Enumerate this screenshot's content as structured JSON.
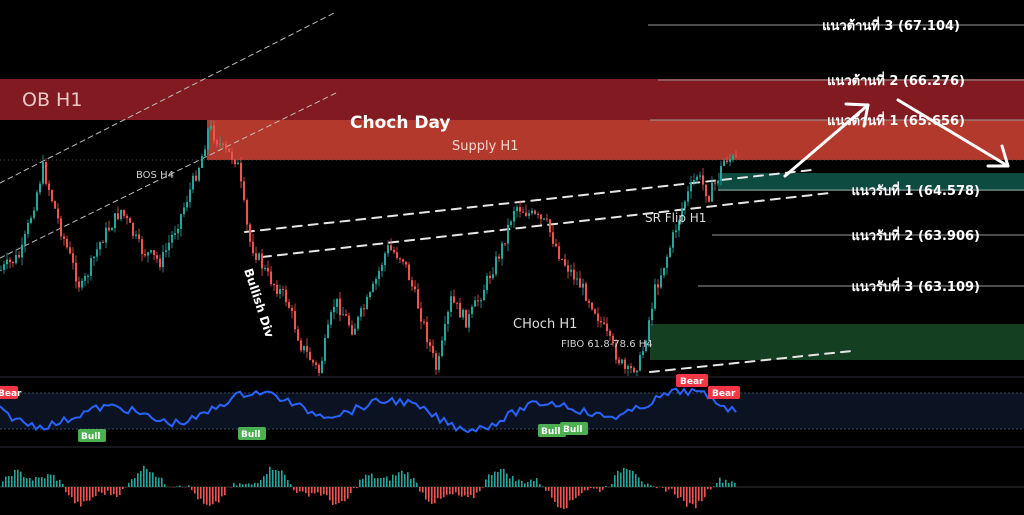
{
  "chart_data": {
    "type": "candlestick",
    "title": "",
    "zones": [
      {
        "label": "OB H1",
        "color": "#8a1c22"
      },
      {
        "label": "Supply H1",
        "color": "#b8392e"
      },
      {
        "label": "",
        "color": "#0e4d43"
      },
      {
        "label": "",
        "color": "#174a24"
      }
    ],
    "annotations": [
      "Choch Day",
      "BOS H4",
      "Bullish Div",
      "SR Flip H1",
      "CHoch H1",
      "FIBO 61.8-78.6 H4"
    ],
    "resistance_levels": [
      {
        "label": "แนวต้านที่ 3 (67.104)",
        "value": 67.104
      },
      {
        "label": "แนวต้านที่ 2 (66.276)",
        "value": 66.276
      },
      {
        "label": "แนวต้านที่ 1 (65.656)",
        "value": 65.656
      }
    ],
    "support_levels": [
      {
        "label": "แนวรับที่ 1 (64.578)",
        "value": 64.578
      },
      {
        "label": "แนวรับที่ 2 (63.906)",
        "value": 63.906
      },
      {
        "label": "แนวรับที่ 3 (63.109)",
        "value": 63.109
      }
    ],
    "oscillator_tags": [
      "Bear",
      "Bull",
      "Bull",
      "Bull",
      "Bull",
      "Bear",
      "Bear"
    ],
    "colors": {
      "bull": "#26a69a",
      "bear": "#ef5350",
      "oscillator_line": "#2962ff",
      "bull_tag": "#4caf50",
      "bear_tag": "#f23645"
    }
  }
}
